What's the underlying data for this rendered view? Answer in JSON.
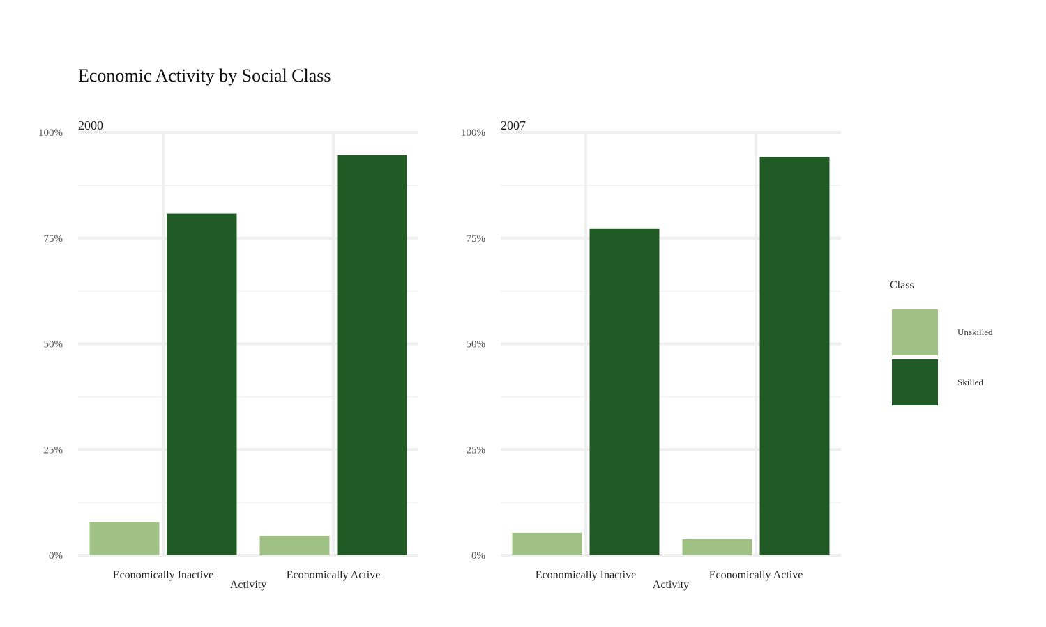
{
  "title": "Economic Activity by Social Class",
  "chart_data": {
    "type": "bar",
    "title": "Economic Activity by Social Class",
    "xlabel": "Activity",
    "ylabel": "",
    "ylim": [
      0,
      100
    ],
    "y_ticks": [
      "0%",
      "25%",
      "50%",
      "75%",
      "100%"
    ],
    "y_tick_values": [
      0,
      25,
      50,
      75,
      100
    ],
    "categories": [
      "Economically Inactive",
      "Economically Active"
    ],
    "legend": {
      "title": "Class",
      "position": "right",
      "entries": [
        "Unskilled",
        "Skilled"
      ]
    },
    "colors": {
      "Unskilled": "#a0c184",
      "Skilled": "#205b26"
    },
    "grid": true,
    "panels": [
      {
        "label": "2000",
        "series": [
          {
            "name": "Unskilled",
            "values": [
              7.8,
              4.6
            ]
          },
          {
            "name": "Skilled",
            "values": [
              80.8,
              94.6
            ]
          }
        ]
      },
      {
        "label": "2007",
        "series": [
          {
            "name": "Unskilled",
            "values": [
              5.3,
              3.8
            ]
          },
          {
            "name": "Skilled",
            "values": [
              77.3,
              94.2
            ]
          }
        ]
      }
    ]
  }
}
